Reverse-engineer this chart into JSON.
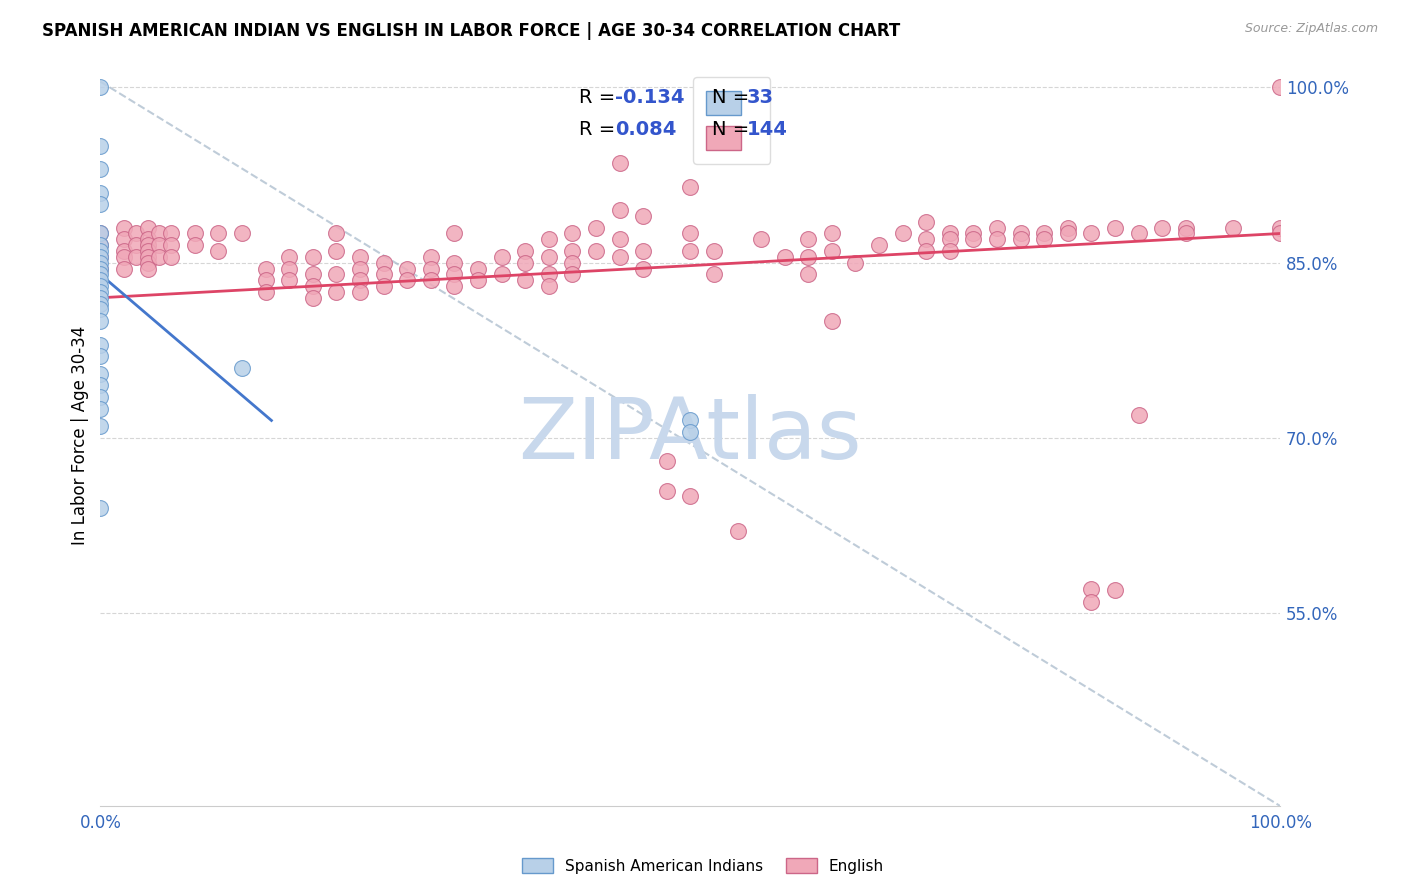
{
  "title": "SPANISH AMERICAN INDIAN VS ENGLISH IN LABOR FORCE | AGE 30-34 CORRELATION CHART",
  "source": "Source: ZipAtlas.com",
  "ylabel": "In Labor Force | Age 30-34",
  "right_yticks": [
    0.55,
    0.7,
    0.85,
    1.0
  ],
  "right_yticklabels": [
    "55.0%",
    "70.0%",
    "85.0%",
    "100.0%"
  ],
  "legend_label_blue": "Spanish American Indians",
  "legend_label_pink": "English",
  "blue_scatter": [
    [
      0.0,
      1.0
    ],
    [
      0.0,
      0.95
    ],
    [
      0.0,
      0.93
    ],
    [
      0.0,
      0.91
    ],
    [
      0.0,
      0.9
    ],
    [
      0.0,
      0.875
    ],
    [
      0.0,
      0.865
    ],
    [
      0.0,
      0.86
    ],
    [
      0.0,
      0.855
    ],
    [
      0.0,
      0.85
    ],
    [
      0.0,
      0.845
    ],
    [
      0.0,
      0.84
    ],
    [
      0.0,
      0.835
    ],
    [
      0.0,
      0.83
    ],
    [
      0.0,
      0.825
    ],
    [
      0.0,
      0.82
    ],
    [
      0.0,
      0.815
    ],
    [
      0.0,
      0.81
    ],
    [
      0.0,
      0.8
    ],
    [
      0.0,
      0.78
    ],
    [
      0.0,
      0.77
    ],
    [
      0.0,
      0.755
    ],
    [
      0.0,
      0.745
    ],
    [
      0.0,
      0.735
    ],
    [
      0.0,
      0.725
    ],
    [
      0.0,
      0.71
    ],
    [
      0.0,
      0.64
    ],
    [
      0.12,
      0.76
    ],
    [
      0.5,
      0.715
    ],
    [
      0.5,
      0.705
    ]
  ],
  "pink_scatter": [
    [
      0.0,
      0.875
    ],
    [
      0.0,
      0.865
    ],
    [
      0.0,
      0.855
    ],
    [
      0.0,
      0.845
    ],
    [
      0.02,
      0.88
    ],
    [
      0.02,
      0.87
    ],
    [
      0.02,
      0.86
    ],
    [
      0.02,
      0.855
    ],
    [
      0.02,
      0.845
    ],
    [
      0.03,
      0.875
    ],
    [
      0.03,
      0.865
    ],
    [
      0.03,
      0.855
    ],
    [
      0.04,
      0.88
    ],
    [
      0.04,
      0.87
    ],
    [
      0.04,
      0.865
    ],
    [
      0.04,
      0.86
    ],
    [
      0.04,
      0.855
    ],
    [
      0.04,
      0.85
    ],
    [
      0.04,
      0.845
    ],
    [
      0.05,
      0.875
    ],
    [
      0.05,
      0.865
    ],
    [
      0.05,
      0.855
    ],
    [
      0.06,
      0.875
    ],
    [
      0.06,
      0.865
    ],
    [
      0.06,
      0.855
    ],
    [
      0.08,
      0.875
    ],
    [
      0.08,
      0.865
    ],
    [
      0.1,
      0.875
    ],
    [
      0.1,
      0.86
    ],
    [
      0.12,
      0.875
    ],
    [
      0.14,
      0.845
    ],
    [
      0.14,
      0.835
    ],
    [
      0.14,
      0.825
    ],
    [
      0.16,
      0.855
    ],
    [
      0.16,
      0.845
    ],
    [
      0.16,
      0.835
    ],
    [
      0.18,
      0.855
    ],
    [
      0.18,
      0.84
    ],
    [
      0.18,
      0.83
    ],
    [
      0.18,
      0.82
    ],
    [
      0.2,
      0.875
    ],
    [
      0.2,
      0.86
    ],
    [
      0.2,
      0.84
    ],
    [
      0.2,
      0.825
    ],
    [
      0.22,
      0.855
    ],
    [
      0.22,
      0.845
    ],
    [
      0.22,
      0.835
    ],
    [
      0.22,
      0.825
    ],
    [
      0.24,
      0.85
    ],
    [
      0.24,
      0.84
    ],
    [
      0.24,
      0.83
    ],
    [
      0.26,
      0.845
    ],
    [
      0.26,
      0.835
    ],
    [
      0.28,
      0.855
    ],
    [
      0.28,
      0.845
    ],
    [
      0.28,
      0.835
    ],
    [
      0.3,
      0.875
    ],
    [
      0.3,
      0.85
    ],
    [
      0.3,
      0.84
    ],
    [
      0.3,
      0.83
    ],
    [
      0.32,
      0.845
    ],
    [
      0.32,
      0.835
    ],
    [
      0.34,
      0.855
    ],
    [
      0.34,
      0.84
    ],
    [
      0.36,
      0.86
    ],
    [
      0.36,
      0.85
    ],
    [
      0.36,
      0.835
    ],
    [
      0.38,
      0.87
    ],
    [
      0.38,
      0.855
    ],
    [
      0.38,
      0.84
    ],
    [
      0.38,
      0.83
    ],
    [
      0.4,
      0.875
    ],
    [
      0.4,
      0.86
    ],
    [
      0.4,
      0.85
    ],
    [
      0.4,
      0.84
    ],
    [
      0.42,
      0.88
    ],
    [
      0.42,
      0.86
    ],
    [
      0.44,
      0.935
    ],
    [
      0.44,
      0.895
    ],
    [
      0.44,
      0.87
    ],
    [
      0.44,
      0.855
    ],
    [
      0.46,
      0.89
    ],
    [
      0.46,
      0.86
    ],
    [
      0.46,
      0.845
    ],
    [
      0.48,
      0.68
    ],
    [
      0.48,
      0.655
    ],
    [
      0.5,
      0.915
    ],
    [
      0.5,
      0.875
    ],
    [
      0.5,
      0.86
    ],
    [
      0.5,
      0.65
    ],
    [
      0.52,
      0.86
    ],
    [
      0.52,
      0.84
    ],
    [
      0.54,
      0.62
    ],
    [
      0.56,
      0.87
    ],
    [
      0.58,
      0.855
    ],
    [
      0.6,
      0.87
    ],
    [
      0.6,
      0.855
    ],
    [
      0.6,
      0.84
    ],
    [
      0.62,
      0.875
    ],
    [
      0.62,
      0.86
    ],
    [
      0.62,
      0.8
    ],
    [
      0.64,
      0.85
    ],
    [
      0.66,
      0.865
    ],
    [
      0.68,
      0.875
    ],
    [
      0.7,
      0.885
    ],
    [
      0.7,
      0.87
    ],
    [
      0.7,
      0.86
    ],
    [
      0.72,
      0.875
    ],
    [
      0.72,
      0.87
    ],
    [
      0.72,
      0.86
    ],
    [
      0.74,
      0.875
    ],
    [
      0.74,
      0.87
    ],
    [
      0.76,
      0.88
    ],
    [
      0.76,
      0.87
    ],
    [
      0.78,
      0.875
    ],
    [
      0.78,
      0.87
    ],
    [
      0.8,
      0.875
    ],
    [
      0.8,
      0.87
    ],
    [
      0.82,
      0.88
    ],
    [
      0.82,
      0.875
    ],
    [
      0.84,
      0.875
    ],
    [
      0.84,
      0.571
    ],
    [
      0.84,
      0.56
    ],
    [
      0.86,
      0.88
    ],
    [
      0.86,
      0.57
    ],
    [
      0.88,
      0.875
    ],
    [
      0.88,
      0.72
    ],
    [
      0.9,
      0.88
    ],
    [
      0.92,
      0.88
    ],
    [
      0.92,
      0.875
    ],
    [
      0.96,
      0.88
    ],
    [
      1.0,
      1.0
    ],
    [
      1.0,
      0.88
    ],
    [
      1.0,
      0.875
    ]
  ],
  "blue_line_x": [
    0.0,
    0.145
  ],
  "blue_line_y": [
    0.84,
    0.715
  ],
  "pink_line_x": [
    0.0,
    1.0
  ],
  "pink_line_y": [
    0.82,
    0.875
  ],
  "dashed_line_x": [
    0.0,
    1.0
  ],
  "dashed_line_y": [
    1.005,
    0.385
  ],
  "color_blue_fill": "#b8d0e8",
  "color_blue_edge": "#6699cc",
  "color_pink_fill": "#f0a8b8",
  "color_pink_edge": "#cc6688",
  "color_blue_line": "#4477cc",
  "color_pink_line": "#dd4466",
  "color_dashed": "#aabbcc",
  "xlim": [
    0.0,
    1.0
  ],
  "ylim": [
    0.385,
    1.02
  ],
  "watermark": "ZIPAtlas",
  "watermark_color": "#c8d8ec",
  "fig_width": 14.06,
  "fig_height": 8.92,
  "dpi": 100
}
